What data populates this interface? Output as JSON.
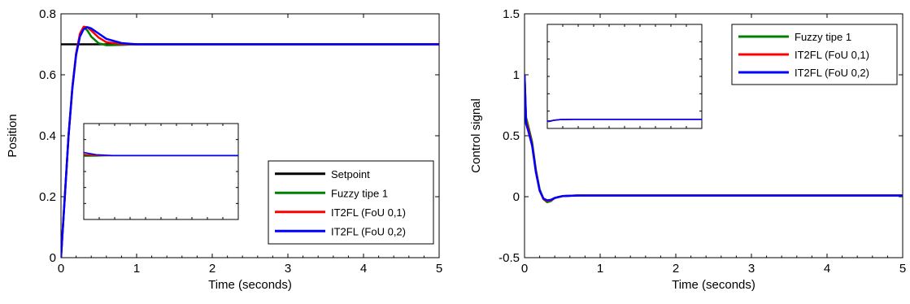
{
  "chart_data": [
    {
      "type": "line",
      "title": "",
      "xlabel": "Time (seconds)",
      "ylabel": "Position",
      "xlim": [
        0,
        5
      ],
      "ylim": [
        0,
        0.8
      ],
      "xticks": [
        "0",
        "1",
        "2",
        "3",
        "4",
        "5"
      ],
      "yticks": [
        "0",
        "0.2",
        "0.4",
        "0.6",
        "0.8"
      ],
      "grid": false,
      "legend_position": "bottom-right",
      "series": [
        {
          "name": "Setpoint",
          "color": "#000000",
          "x": [
            0,
            5
          ],
          "y": [
            0.7,
            0.7
          ]
        },
        {
          "name": "Fuzzy tipe 1",
          "color": "#008000",
          "x": [
            0,
            0.05,
            0.1,
            0.15,
            0.2,
            0.25,
            0.3,
            0.35,
            0.4,
            0.5,
            0.6,
            0.8,
            1.0,
            5.0
          ],
          "y": [
            0,
            0.2,
            0.4,
            0.56,
            0.67,
            0.73,
            0.756,
            0.745,
            0.725,
            0.703,
            0.697,
            0.698,
            0.7,
            0.7
          ]
        },
        {
          "name": "IT2FL (FoU 0,1)",
          "color": "#ff0000",
          "x": [
            0,
            0.05,
            0.1,
            0.15,
            0.2,
            0.25,
            0.3,
            0.35,
            0.4,
            0.5,
            0.6,
            0.8,
            1.0,
            5.0
          ],
          "y": [
            0,
            0.2,
            0.4,
            0.56,
            0.67,
            0.735,
            0.758,
            0.756,
            0.745,
            0.722,
            0.707,
            0.701,
            0.7,
            0.7
          ]
        },
        {
          "name": "IT2FL (FoU 0,2)",
          "color": "#0000ff",
          "x": [
            0,
            0.05,
            0.1,
            0.15,
            0.2,
            0.25,
            0.3,
            0.35,
            0.4,
            0.5,
            0.6,
            0.8,
            1.0,
            5.0
          ],
          "y": [
            0,
            0.2,
            0.4,
            0.555,
            0.665,
            0.725,
            0.75,
            0.756,
            0.752,
            0.735,
            0.718,
            0.704,
            0.7,
            0.7
          ]
        }
      ]
    },
    {
      "type": "line",
      "title": "",
      "xlabel": "Time (seconds)",
      "ylabel": "Control signal",
      "xlim": [
        0,
        5
      ],
      "ylim": [
        -0.5,
        1.5
      ],
      "xticks": [
        "0",
        "1",
        "2",
        "3",
        "4",
        "5"
      ],
      "yticks": [
        "-0.5",
        "0",
        "0.5",
        "1",
        "1.5"
      ],
      "grid": false,
      "legend_position": "top-right",
      "series": [
        {
          "name": "Fuzzy tipe 1",
          "color": "#008000",
          "x": [
            0,
            0.02,
            0.05,
            0.1,
            0.15,
            0.2,
            0.25,
            0.3,
            0.35,
            0.4,
            0.5,
            0.7,
            1.0,
            5.0
          ],
          "y": [
            1.0,
            0.65,
            0.58,
            0.45,
            0.22,
            0.06,
            -0.02,
            -0.045,
            -0.035,
            -0.01,
            0.005,
            0.01,
            0.01,
            0.01
          ]
        },
        {
          "name": "IT2FL (FoU 0,1)",
          "color": "#ff0000",
          "x": [
            0,
            0.02,
            0.05,
            0.1,
            0.15,
            0.2,
            0.25,
            0.3,
            0.35,
            0.4,
            0.5,
            0.7,
            1.0,
            5.0
          ],
          "y": [
            1.0,
            0.62,
            0.56,
            0.43,
            0.21,
            0.05,
            -0.02,
            -0.035,
            -0.03,
            -0.01,
            0.005,
            0.01,
            0.01,
            0.01
          ]
        },
        {
          "name": "IT2FL (FoU 0,2)",
          "color": "#0000ff",
          "x": [
            0,
            0.02,
            0.05,
            0.1,
            0.15,
            0.2,
            0.25,
            0.3,
            0.35,
            0.4,
            0.5,
            0.7,
            1.0,
            5.0
          ],
          "y": [
            1.0,
            0.6,
            0.54,
            0.42,
            0.2,
            0.05,
            -0.015,
            -0.03,
            -0.025,
            -0.01,
            0.005,
            0.01,
            0.01,
            0.01
          ]
        }
      ]
    }
  ]
}
